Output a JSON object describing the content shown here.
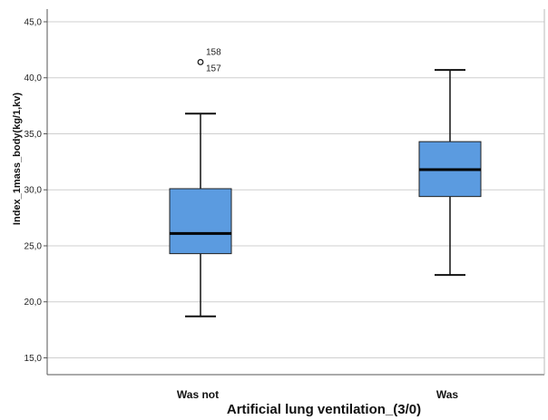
{
  "chart_data": {
    "type": "boxplot",
    "title": "",
    "xlabel": "Artificial lung ventilation_(3/0)",
    "ylabel": "Index_1mass_body(kg/1,kv)",
    "ylim": [
      13.5,
      45.0
    ],
    "yticks": [
      "15,0",
      "20,0",
      "25,0",
      "30,0",
      "35,0",
      "40,0",
      "45,0"
    ],
    "ytick_values": [
      15,
      20,
      25,
      30,
      35,
      40,
      45
    ],
    "grid": "horizontal",
    "box_color": "#5b9be0",
    "categories": [
      "Was not",
      "Was"
    ],
    "boxes": [
      {
        "category": "Was not",
        "whisker_low": 18.7,
        "q1": 24.3,
        "median": 26.1,
        "q3": 30.1,
        "whisker_high": 36.8,
        "outliers": [
          {
            "value": 41.4,
            "labels": [
              "158",
              "157"
            ]
          }
        ]
      },
      {
        "category": "Was",
        "whisker_low": 22.4,
        "q1": 29.4,
        "median": 31.8,
        "q3": 34.3,
        "whisker_high": 40.7,
        "outliers": []
      }
    ]
  }
}
